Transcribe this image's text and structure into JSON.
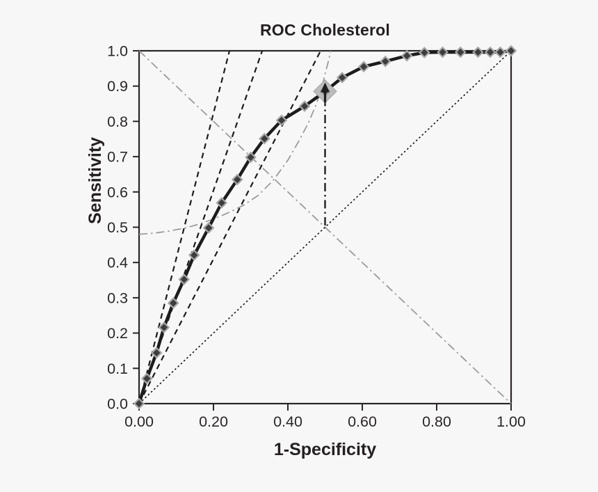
{
  "chart": {
    "title": "ROC Cholesterol",
    "xlabel": "1-Specificity",
    "ylabel": "Sensitivity"
  },
  "chart_data": {
    "type": "line",
    "title": "ROC Cholesterol",
    "xlabel": "1-Specificity",
    "ylabel": "Sensitivity",
    "xlim": [
      0,
      1
    ],
    "ylim": [
      0,
      1
    ],
    "grid": false,
    "legend": "none",
    "x_tick_values": [
      0,
      0.2,
      0.4,
      0.6,
      0.8,
      1.0
    ],
    "x_tick_labels": [
      "0.00",
      "0.20",
      "0.40",
      "0.60",
      "0.80",
      "1.00"
    ],
    "y_tick_values": [
      0,
      0.1,
      0.2,
      0.3,
      0.4,
      0.5,
      0.6,
      0.7,
      0.8,
      0.9,
      1.0
    ],
    "y_tick_labels": [
      "0.0",
      "0.1",
      "0.2",
      "0.3",
      "0.4",
      "0.5",
      "0.6",
      "0.7",
      "0.8",
      "0.9",
      "1.0"
    ],
    "colors": {
      "roc_curve": "#1c1c1c",
      "marker_fill": "#3d3d3d",
      "marker_edge": "#a8a8a8",
      "operating_point_fill": "#bcbcbc",
      "operating_point_edge": "#a2a2a2",
      "dashed_lines": "#1c1c1c",
      "chance_line": "#1c1c1c",
      "gray_lines": "#9b9b9b",
      "axis": "#2a2628",
      "background": "#f7f7f7"
    },
    "series": [
      {
        "name": "anti-diagonal",
        "label": "sens-equals-spec line",
        "style": "dashdot",
        "color": "#9b9b9b",
        "width": 1.8,
        "points": [
          [
            0,
            1
          ],
          [
            1,
            0
          ]
        ]
      },
      {
        "name": "gray-criterion-curve",
        "label": "gray dash-dot curve",
        "style": "dashdot",
        "color": "#9b9b9b",
        "width": 1.8,
        "points": [
          [
            0,
            0.48
          ],
          [
            0.04,
            0.483
          ],
          [
            0.08,
            0.489
          ],
          [
            0.12,
            0.497
          ],
          [
            0.16,
            0.508
          ],
          [
            0.2,
            0.523
          ],
          [
            0.24,
            0.541
          ],
          [
            0.28,
            0.562
          ],
          [
            0.32,
            0.59
          ],
          [
            0.36,
            0.632
          ],
          [
            0.4,
            0.69
          ],
          [
            0.43,
            0.745
          ],
          [
            0.455,
            0.795
          ],
          [
            0.475,
            0.845
          ],
          [
            0.49,
            0.89
          ],
          [
            0.5,
            0.935
          ],
          [
            0.51,
            0.975
          ],
          [
            0.515,
            1.0
          ]
        ]
      },
      {
        "name": "slope-line-steep",
        "label": "dashed slope line 1",
        "style": "dashed",
        "color": "#1c1c1c",
        "width": 2.2,
        "points": [
          [
            0,
            0
          ],
          [
            0.243,
            1
          ]
        ]
      },
      {
        "name": "slope-line-middle",
        "label": "dashed slope line 2",
        "style": "dashed",
        "color": "#1c1c1c",
        "width": 2.2,
        "points": [
          [
            0,
            0
          ],
          [
            0.331,
            1
          ]
        ]
      },
      {
        "name": "slope-line-shallow",
        "label": "dashed slope line 3",
        "style": "dashed",
        "color": "#1c1c1c",
        "width": 2.2,
        "points": [
          [
            0,
            0
          ],
          [
            0.488,
            1
          ]
        ]
      },
      {
        "name": "chance-diagonal",
        "label": "chance line",
        "style": "dotted",
        "color": "#1c1c1c",
        "width": 1.7,
        "points": [
          [
            0,
            0
          ],
          [
            1,
            1
          ]
        ]
      },
      {
        "name": "operating-point-indicator",
        "label": "vertical arrow at 1-Specificity = 0.50",
        "style": "dashdot-arrow",
        "color": "#1f1f1f",
        "width": 2.4,
        "points": [
          [
            0.5,
            0.505
          ],
          [
            0.5,
            0.857
          ]
        ]
      },
      {
        "name": "roc-curve",
        "label": "ROC curve for cholesterol",
        "style": "solid",
        "color": "#1c1c1c",
        "width": 4.5,
        "marker": "diamond",
        "points": [
          [
            0,
            0
          ],
          [
            0.021,
            0.071
          ],
          [
            0.047,
            0.144
          ],
          [
            0.067,
            0.216
          ],
          [
            0.092,
            0.285
          ],
          [
            0.121,
            0.352
          ],
          [
            0.148,
            0.421
          ],
          [
            0.187,
            0.498
          ],
          [
            0.222,
            0.569
          ],
          [
            0.264,
            0.635
          ],
          [
            0.3,
            0.698
          ],
          [
            0.337,
            0.751
          ],
          [
            0.383,
            0.803
          ],
          [
            0.445,
            0.843
          ],
          [
            0.5,
            0.885
          ],
          [
            0.546,
            0.924
          ],
          [
            0.604,
            0.955
          ],
          [
            0.662,
            0.97
          ],
          [
            0.72,
            0.986
          ],
          [
            0.767,
            0.995
          ],
          [
            0.816,
            0.996
          ],
          [
            0.864,
            0.996
          ],
          [
            0.911,
            0.996
          ],
          [
            0.944,
            0.996
          ],
          [
            0.971,
            0.996
          ],
          [
            1.0,
            1.0
          ]
        ]
      }
    ],
    "operating_point": {
      "x": 0.5,
      "y": 0.885,
      "marker": "large-gray-diamond"
    }
  }
}
